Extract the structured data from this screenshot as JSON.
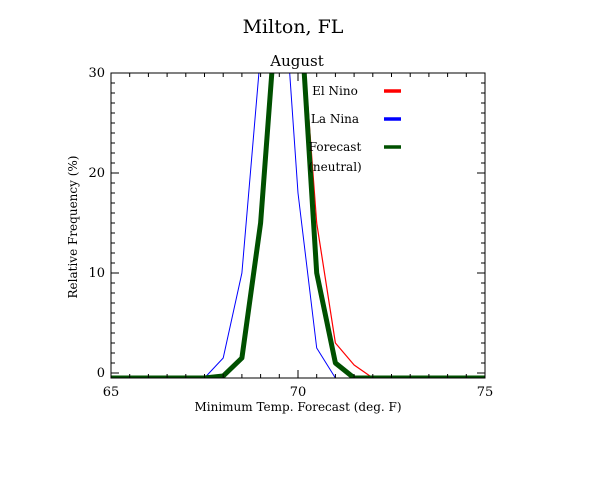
{
  "chart_data": {
    "type": "line",
    "title": "Milton, FL",
    "subtitle": "August",
    "xlabel": "Minimum Temp. Forecast (deg. F)",
    "ylabel": "Relative Frequency (%)",
    "xlim": [
      65,
      75
    ],
    "ylim": [
      -0.5,
      30
    ],
    "x_ticks": [
      65,
      70,
      75
    ],
    "y_ticks": [
      0,
      10,
      20,
      30
    ],
    "grid": false,
    "legend_position": "top-right",
    "series": [
      {
        "name": "El Nino",
        "color": "#ff0000",
        "x": [
          65,
          67.5,
          68,
          68.5,
          69,
          69.5,
          70,
          70.5,
          71,
          71.5,
          72,
          75
        ],
        "y": [
          -0.5,
          -0.5,
          -0.3,
          1.5,
          15,
          40,
          40,
          15,
          3,
          0.8,
          -0.5,
          -0.5
        ]
      },
      {
        "name": "La Nina",
        "color": "#0000ff",
        "x": [
          65,
          67.5,
          68,
          68.5,
          69,
          69.5,
          70,
          70.5,
          71,
          71.5,
          75
        ],
        "y": [
          -0.5,
          -0.5,
          1.5,
          10,
          32,
          45,
          18,
          2.5,
          -0.5,
          -0.5,
          -0.5
        ]
      },
      {
        "name": "Forecast\n(neutral)",
        "color": "#005000",
        "x": [
          65,
          67.5,
          68,
          68.5,
          69,
          69.5,
          70,
          70.5,
          71,
          71.5,
          72,
          75
        ],
        "y": [
          -0.5,
          -0.5,
          -0.3,
          1.5,
          15,
          40,
          40,
          10,
          1,
          -0.5,
          -0.5,
          -0.5
        ]
      }
    ]
  }
}
